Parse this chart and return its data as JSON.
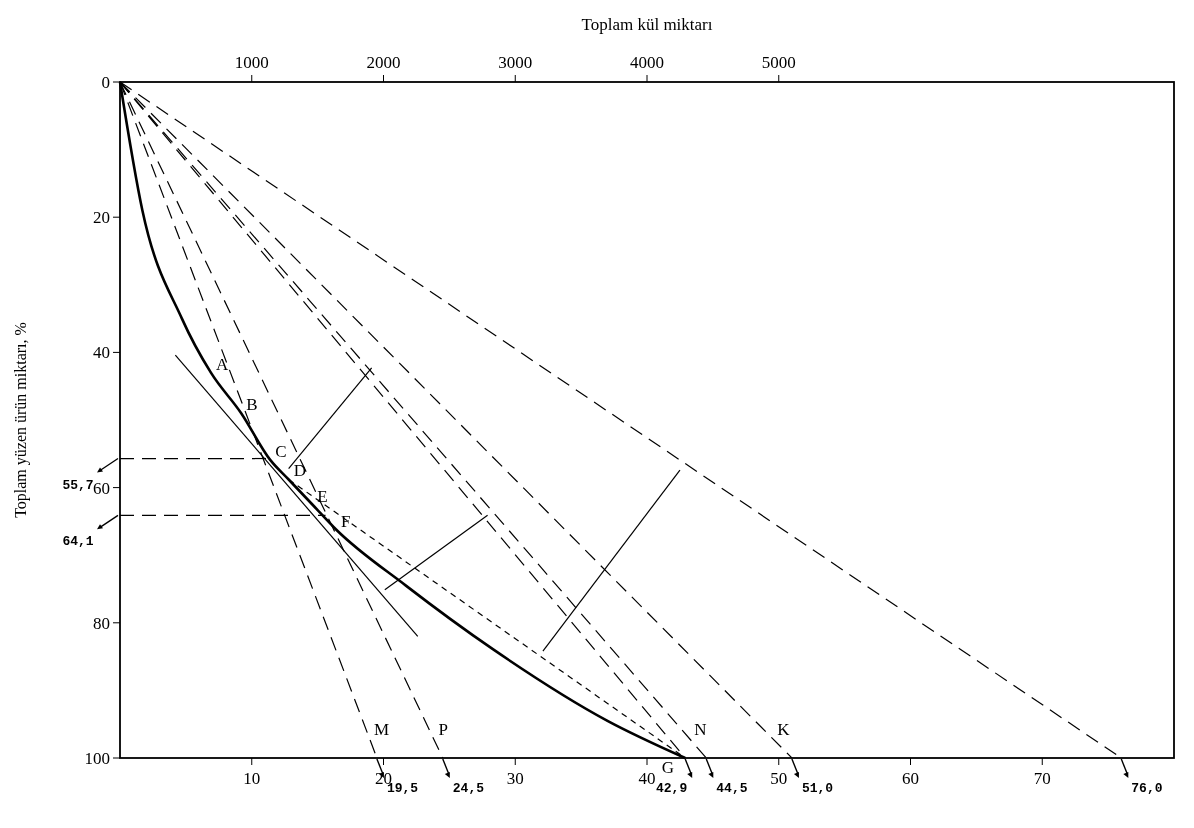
{
  "chart_data": {
    "type": "line",
    "x2label": "Toplam kül miktarı",
    "ylabel": "Toplam yüzen ürün miktarı, %",
    "xlim": [
      0,
      80
    ],
    "xticks": [
      10,
      20,
      30,
      40,
      50,
      60,
      70
    ],
    "x2lim": [
      0,
      8000
    ],
    "x2ticks": [
      1000,
      2000,
      3000,
      4000,
      5000
    ],
    "ylim": [
      100,
      0
    ],
    "yticks": [
      0,
      20,
      40,
      60,
      80,
      100
    ],
    "grid": false,
    "marker": "none",
    "series": [
      {
        "color": "#000000",
        "line_style": "solid",
        "x": [
          0,
          1.7,
          4.7,
          6.9,
          9.2,
          11.4,
          12.8,
          14.6,
          16.4,
          21.7,
          28.3,
          37,
          42.9
        ],
        "values": [
          0,
          19,
          35,
          43,
          49,
          55.9,
          58.8,
          62.5,
          66.2,
          74.5,
          83.9,
          94.5,
          100
        ]
      },
      {
        "color": "#000000",
        "line_style": "solid",
        "x": [
          4.2,
          22.6
        ],
        "values": [
          40.4,
          82
        ]
      },
      {
        "color": "#000000",
        "line_style": "dashed",
        "x": [
          0,
          11.4
        ],
        "values": [
          55.7,
          55.7
        ]
      },
      {
        "color": "#000000",
        "line_style": "dashed",
        "x": [
          0,
          15.6
        ],
        "values": [
          64.1,
          64.1
        ]
      },
      {
        "color": "#000000",
        "line_style": "dashed",
        "x": [
          0,
          19.5
        ],
        "values": [
          0,
          100
        ]
      },
      {
        "color": "#000000",
        "line_style": "dashed",
        "x": [
          0,
          24.5
        ],
        "values": [
          0,
          100
        ]
      },
      {
        "color": "#000000",
        "line_style": "dashed",
        "x": [
          0,
          42.9
        ],
        "values": [
          0,
          100
        ]
      },
      {
        "color": "#000000",
        "line_style": "dashed",
        "x": [
          0,
          44.5
        ],
        "values": [
          0,
          100
        ]
      },
      {
        "color": "#000000",
        "line_style": "dashed",
        "x": [
          0,
          51.0
        ],
        "values": [
          0,
          100
        ]
      },
      {
        "color": "#000000",
        "line_style": "dashed",
        "x": [
          0,
          76.0
        ],
        "values": [
          0,
          100
        ]
      },
      {
        "color": "#000000",
        "line_style": "dotted",
        "x": [
          12.8,
          42.9
        ],
        "values": [
          58.8,
          100
        ]
      },
      {
        "color": "#000000",
        "line_style": "solid",
        "x": [
          12.8,
          19.1
        ],
        "values": [
          57.2,
          42.3
        ]
      },
      {
        "color": "#000000",
        "line_style": "solid",
        "x": [
          20.1,
          27.9
        ],
        "values": [
          75.1,
          64.1
        ]
      },
      {
        "color": "#000000",
        "line_style": "solid",
        "x": [
          32.1,
          42.5
        ],
        "values": [
          84.2,
          57.4
        ]
      }
    ],
    "annotations": [
      {
        "text": "A",
        "x": 6.9,
        "y": 43
      },
      {
        "text": "B",
        "x": 9.2,
        "y": 49
      },
      {
        "text": "C",
        "x": 11.4,
        "y": 55.9
      },
      {
        "text": "D",
        "x": 12.8,
        "y": 58.8
      },
      {
        "text": "E",
        "x": 14.6,
        "y": 62.5
      },
      {
        "text": "F",
        "x": 16.4,
        "y": 66.2
      },
      {
        "text": "M",
        "x": 18.9,
        "y": 97
      },
      {
        "text": "P",
        "x": 23.8,
        "y": 97
      },
      {
        "text": "N",
        "x": 43.2,
        "y": 97
      },
      {
        "text": "K",
        "x": 49.5,
        "y": 97
      },
      {
        "text": "G",
        "x": 42.5,
        "y": 99
      },
      {
        "text": "55,7",
        "x": 0,
        "y": 55.7
      },
      {
        "text": "64,1",
        "x": 0,
        "y": 64.1
      },
      {
        "text": "19,5",
        "x": 19.5,
        "y": 100
      },
      {
        "text": "24,5",
        "x": 24.5,
        "y": 100
      },
      {
        "text": "42,9",
        "x": 42.9,
        "y": 100
      },
      {
        "text": "44,5",
        "x": 44.5,
        "y": 100
      },
      {
        "text": "51,0",
        "x": 51.0,
        "y": 100
      },
      {
        "text": "76,0",
        "x": 76.0,
        "y": 100
      }
    ]
  }
}
